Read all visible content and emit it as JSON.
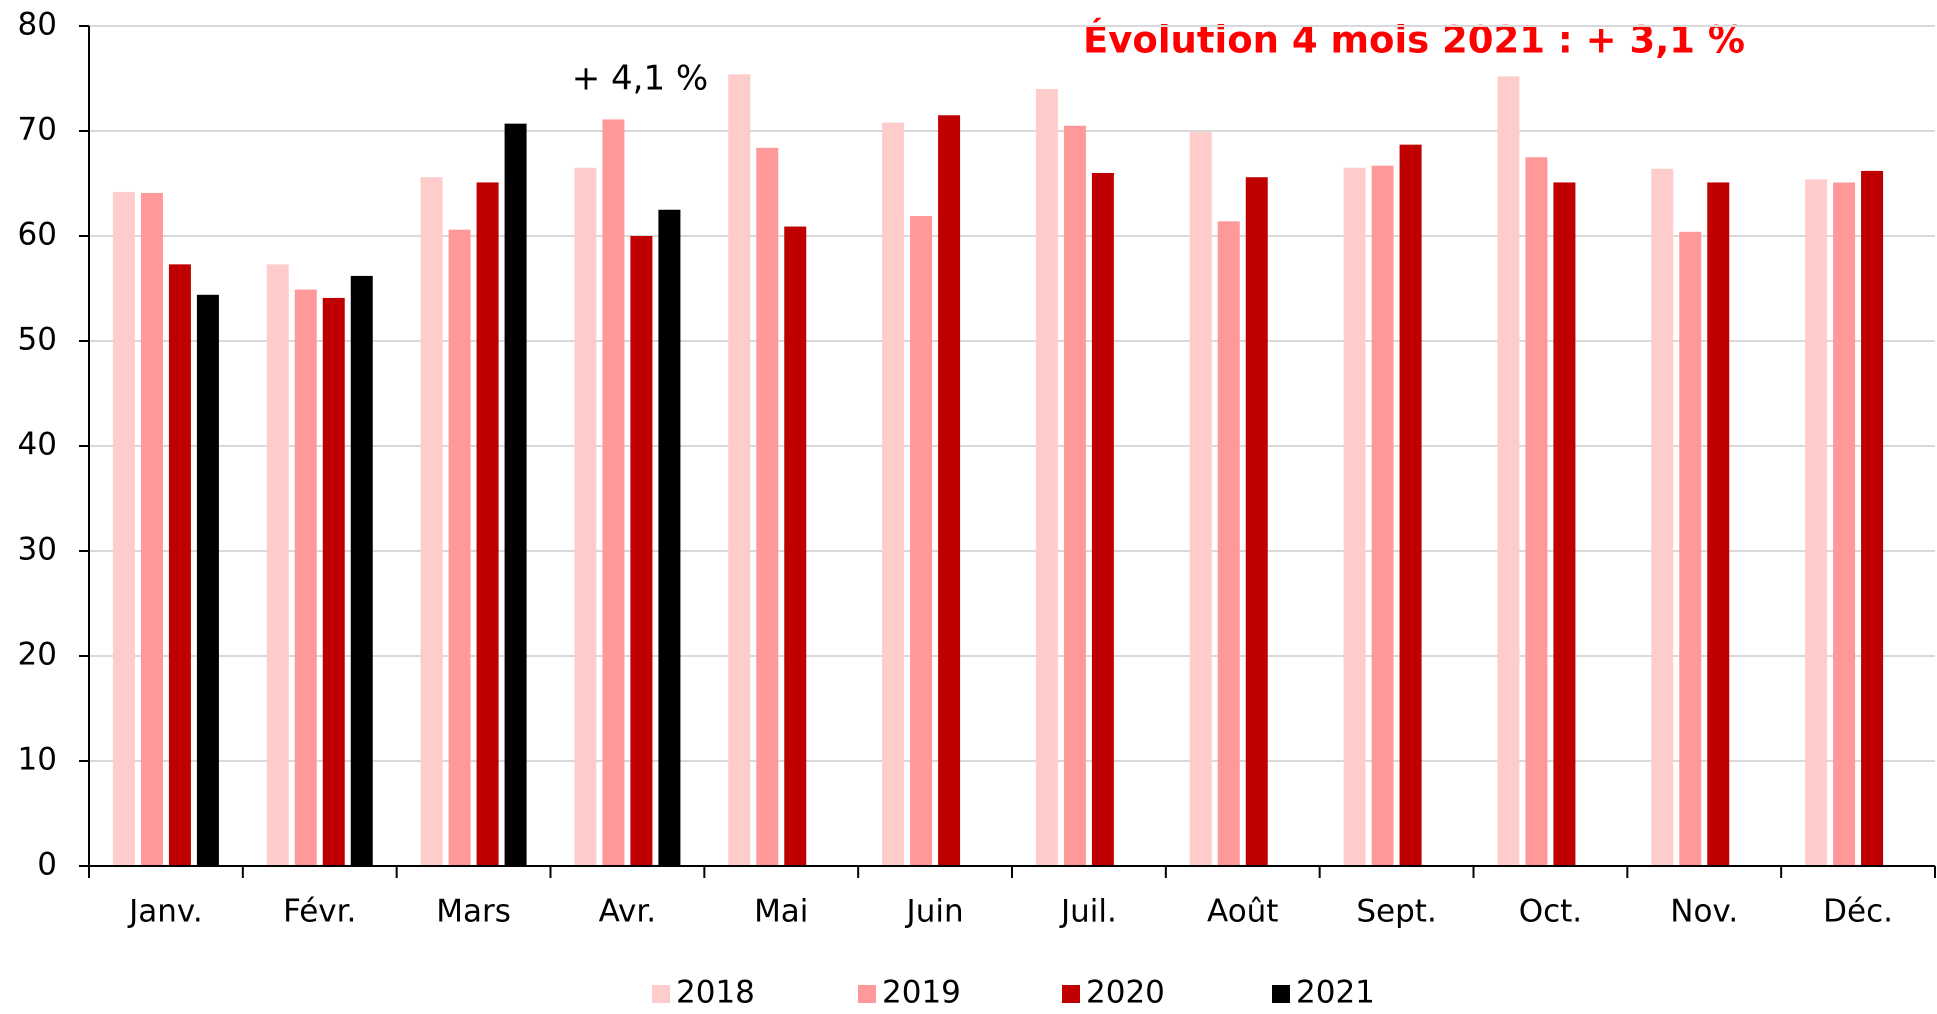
{
  "chart_data": {
    "type": "bar",
    "annotations": [
      "Évolution 4 mois 2021 : + 3,1 %",
      "+ 4,1 %"
    ],
    "categories": [
      "Janv.",
      "Févr.",
      "Mars",
      "Avr.",
      "Mai",
      "Juin",
      "Juil.",
      "Août",
      "Sept.",
      "Oct.",
      "Nov.",
      "Déc."
    ],
    "series": [
      {
        "name": "2018",
        "color": "#ffcccc",
        "values": [
          64.2,
          57.3,
          65.6,
          66.5,
          75.4,
          70.8,
          74.0,
          69.9,
          66.5,
          75.2,
          66.4,
          65.4
        ]
      },
      {
        "name": "2019",
        "color": "#ff9999",
        "values": [
          64.1,
          54.9,
          60.6,
          71.1,
          68.4,
          61.9,
          70.5,
          61.4,
          66.7,
          67.5,
          60.4,
          65.1
        ]
      },
      {
        "name": "2020",
        "color": "#c00000",
        "values": [
          57.3,
          54.1,
          65.1,
          60.0,
          60.9,
          71.5,
          66.0,
          65.6,
          68.7,
          65.1,
          65.1,
          66.2
        ]
      },
      {
        "name": "2021",
        "color": "#000000",
        "values": [
          54.4,
          56.2,
          70.7,
          62.5,
          null,
          null,
          null,
          null,
          null,
          null,
          null,
          null
        ]
      }
    ],
    "ylim": [
      0,
      80
    ],
    "yticks": [
      0,
      10,
      20,
      30,
      40,
      50,
      60,
      70,
      80
    ],
    "grid": true,
    "legend": "bottom"
  }
}
